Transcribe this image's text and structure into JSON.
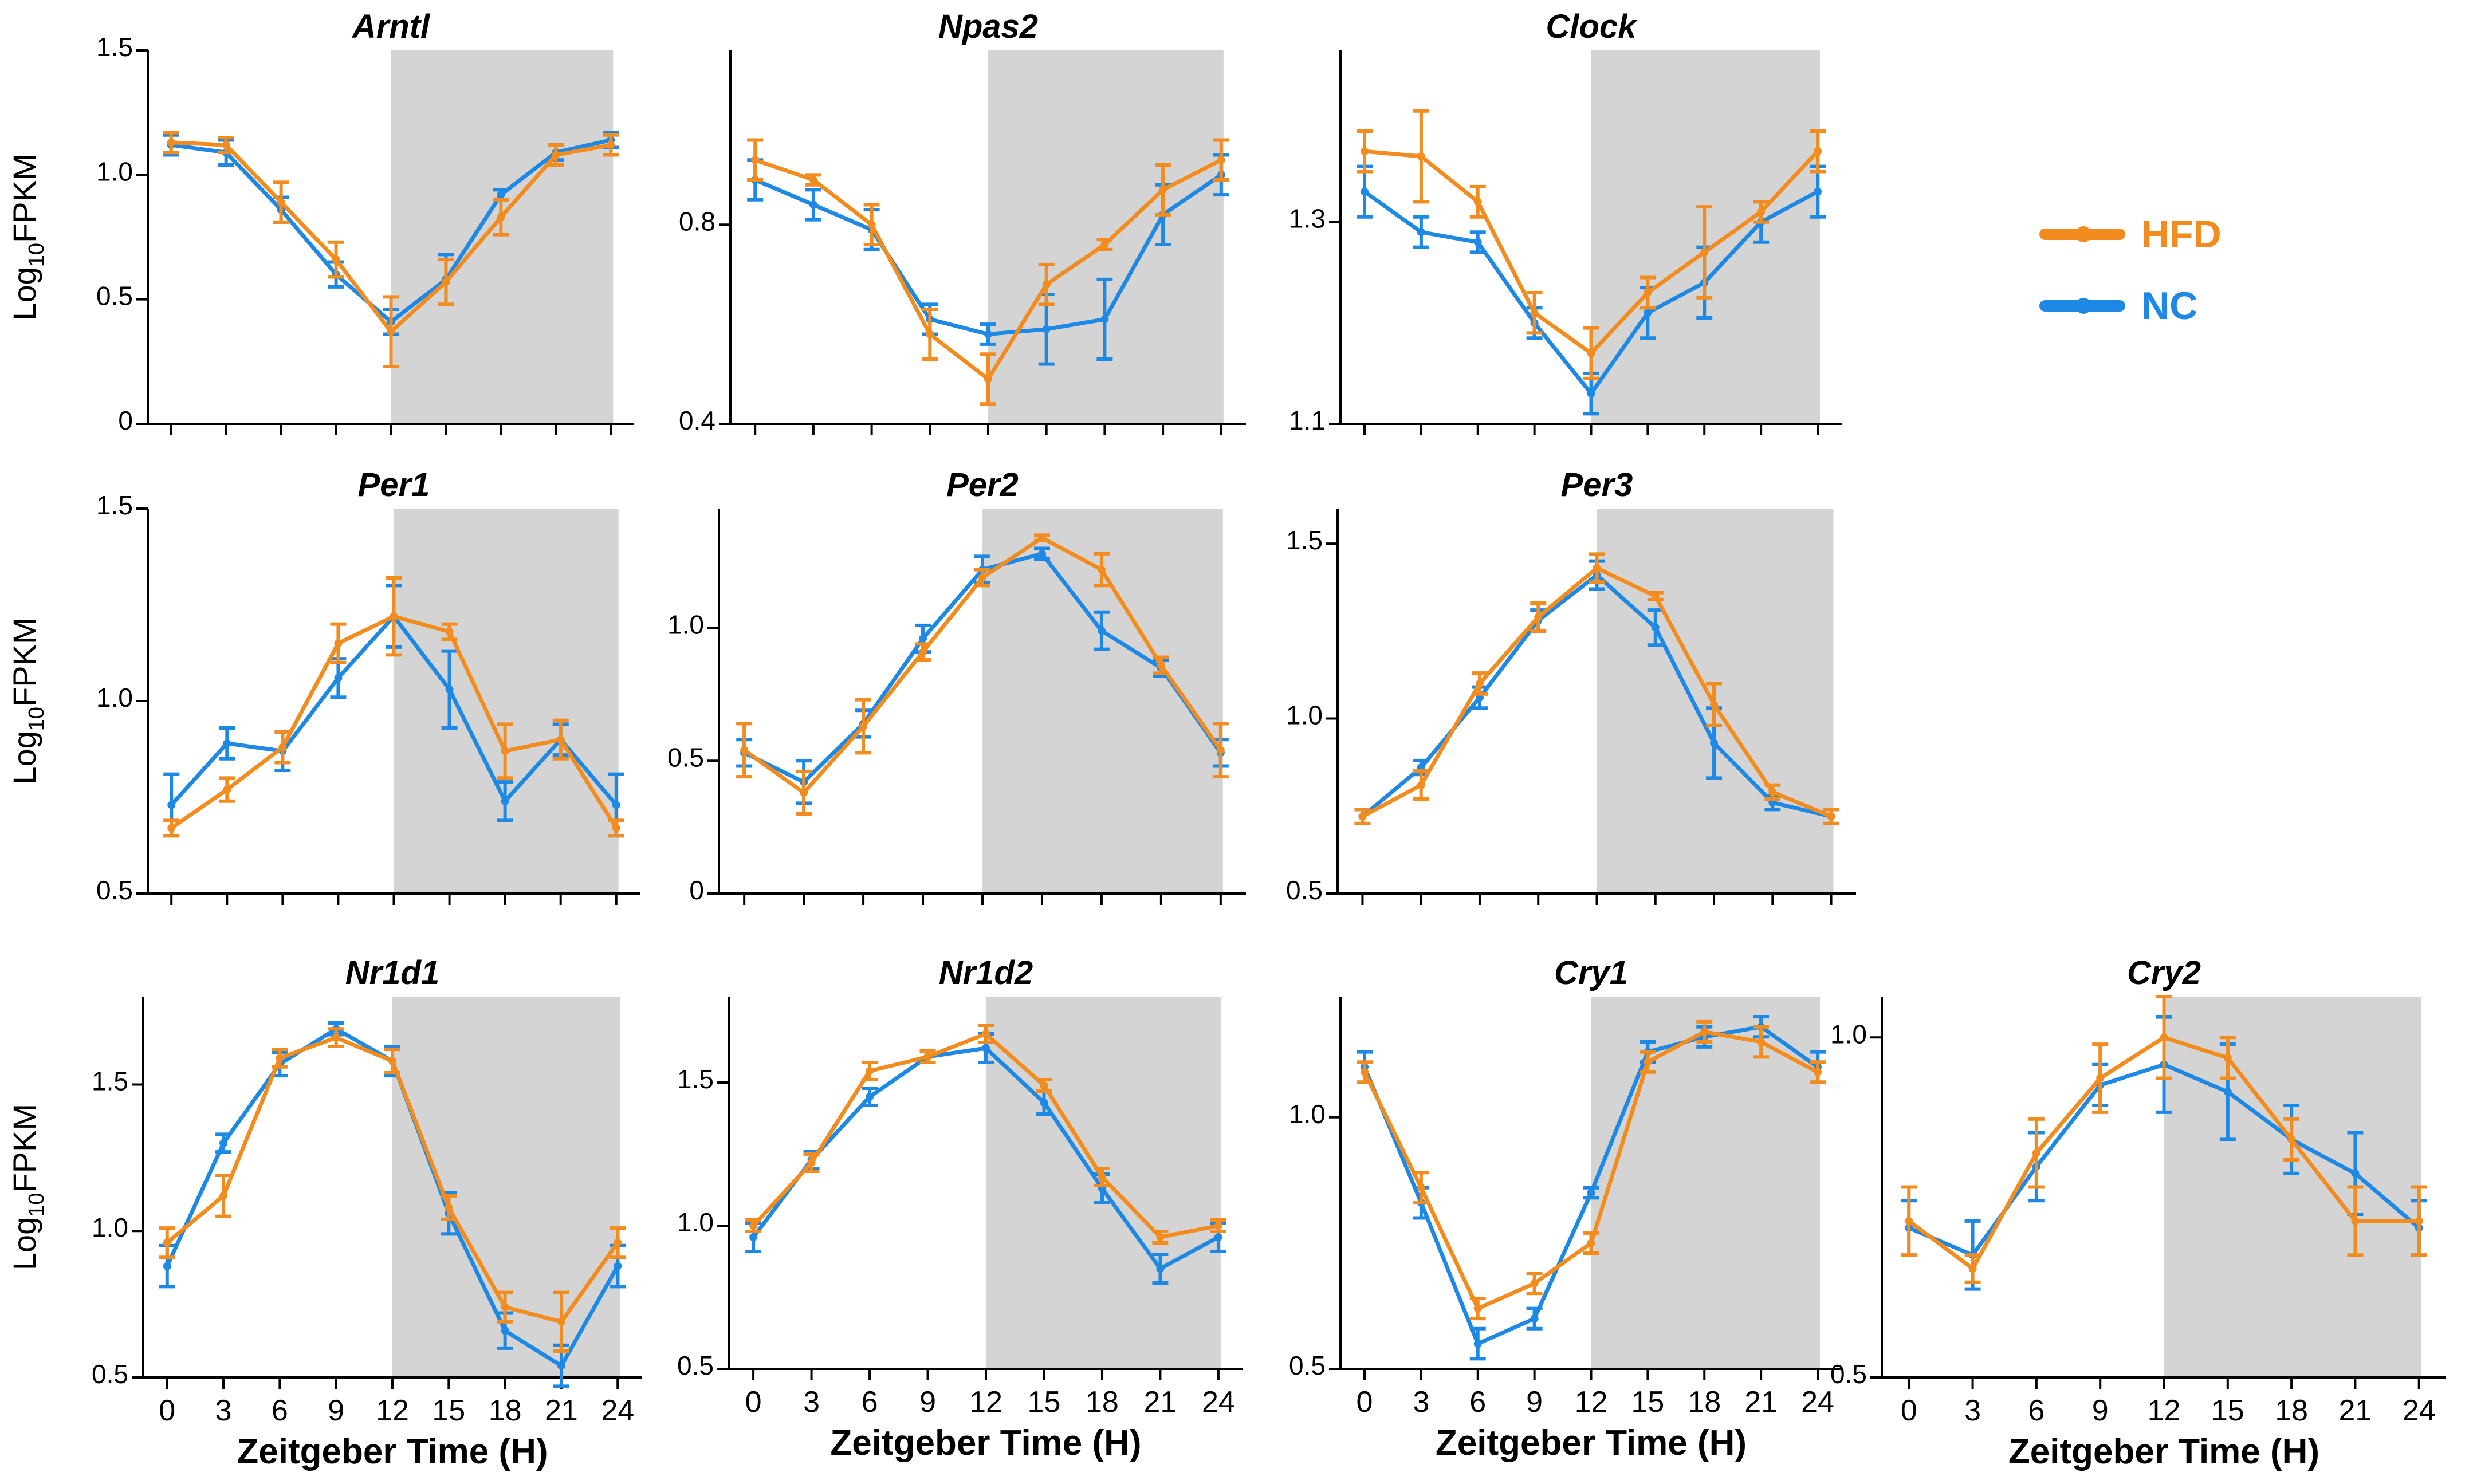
{
  "figure": {
    "ylabel_main": "Log",
    "ylabel_sub": "10",
    "ylabel_tail": "FPKM",
    "xlabel": "Zeitgeber Time (H)",
    "x_ticks": [
      "0",
      "3",
      "6",
      "9",
      "12",
      "15",
      "18",
      "21",
      "24"
    ],
    "dark_phase": [
      12,
      24
    ]
  },
  "legend": {
    "hfd": {
      "label": "HFD",
      "color": "#F28C1E"
    },
    "nc": {
      "label": "NC",
      "color": "#1E88E5"
    }
  },
  "chart_data": [
    {
      "type": "line",
      "title": "Arntl",
      "xlabel": "",
      "ylabel": "Log10FPKM",
      "x": [
        0,
        3,
        6,
        9,
        12,
        15,
        18,
        21,
        24
      ],
      "ylim": [
        0,
        1.5
      ],
      "yticks": [
        0,
        0.5,
        1.0,
        1.5
      ],
      "ytick_labels": [
        "0",
        "0.5",
        "1.0",
        "1.5"
      ],
      "series": [
        {
          "name": "HFD",
          "values": [
            1.13,
            1.12,
            0.89,
            0.66,
            0.37,
            0.57,
            0.83,
            1.08,
            1.12
          ],
          "errors": [
            0.04,
            0.03,
            0.08,
            0.07,
            0.14,
            0.09,
            0.07,
            0.04,
            0.04
          ]
        },
        {
          "name": "NC",
          "values": [
            1.12,
            1.09,
            0.86,
            0.6,
            0.41,
            0.58,
            0.92,
            1.09,
            1.14
          ],
          "errors": [
            0.04,
            0.05,
            0.05,
            0.05,
            0.05,
            0.1,
            0.02,
            0.03,
            0.03
          ]
        }
      ]
    },
    {
      "type": "line",
      "title": "Npas2",
      "xlabel": "",
      "ylabel": "",
      "x": [
        0,
        3,
        6,
        9,
        12,
        15,
        18,
        21,
        24
      ],
      "ylim": [
        0.4,
        1.15
      ],
      "yticks": [
        0.4,
        0.8
      ],
      "ytick_labels": [
        "0.4",
        "0.8"
      ],
      "series": [
        {
          "name": "HFD",
          "values": [
            0.93,
            0.89,
            0.8,
            0.58,
            0.49,
            0.68,
            0.76,
            0.87,
            0.93
          ],
          "errors": [
            0.04,
            0.01,
            0.04,
            0.05,
            0.05,
            0.04,
            0.01,
            0.05,
            0.04
          ]
        },
        {
          "name": "NC",
          "values": [
            0.89,
            0.84,
            0.79,
            0.61,
            0.58,
            0.59,
            0.61,
            0.82,
            0.9
          ],
          "errors": [
            0.04,
            0.03,
            0.04,
            0.03,
            0.02,
            0.07,
            0.08,
            0.06,
            0.04
          ]
        }
      ]
    },
    {
      "type": "line",
      "title": "Clock",
      "xlabel": "",
      "ylabel": "",
      "x": [
        0,
        3,
        6,
        9,
        12,
        15,
        18,
        21,
        24
      ],
      "ylim": [
        1.1,
        1.47
      ],
      "yticks": [
        1.1,
        1.3
      ],
      "ytick_labels": [
        "1.1",
        "1.3"
      ],
      "series": [
        {
          "name": "HFD",
          "values": [
            1.37,
            1.365,
            1.32,
            1.21,
            1.17,
            1.23,
            1.27,
            1.31,
            1.37
          ],
          "errors": [
            0.02,
            0.045,
            0.015,
            0.02,
            0.025,
            0.015,
            0.045,
            0.01,
            0.02
          ]
        },
        {
          "name": "NC",
          "values": [
            1.33,
            1.29,
            1.28,
            1.2,
            1.13,
            1.21,
            1.24,
            1.3,
            1.33
          ],
          "errors": [
            0.025,
            0.015,
            0.01,
            0.015,
            0.02,
            0.025,
            0.035,
            0.02,
            0.025
          ]
        }
      ]
    },
    {
      "type": "line",
      "title": "Per1",
      "xlabel": "",
      "ylabel": "Log10FPKM",
      "x": [
        0,
        3,
        6,
        9,
        12,
        15,
        18,
        21,
        24
      ],
      "ylim": [
        0.5,
        1.5
      ],
      "yticks": [
        0.5,
        1.0,
        1.5
      ],
      "ytick_labels": [
        "0.5",
        "1.0",
        "1.5"
      ],
      "series": [
        {
          "name": "HFD",
          "values": [
            0.67,
            0.77,
            0.88,
            1.15,
            1.22,
            1.18,
            0.87,
            0.9,
            0.67
          ],
          "errors": [
            0.02,
            0.03,
            0.04,
            0.05,
            0.1,
            0.02,
            0.07,
            0.05,
            0.02
          ]
        },
        {
          "name": "NC",
          "values": [
            0.73,
            0.89,
            0.87,
            1.06,
            1.22,
            1.03,
            0.74,
            0.9,
            0.73
          ],
          "errors": [
            0.08,
            0.04,
            0.05,
            0.05,
            0.08,
            0.1,
            0.05,
            0.04,
            0.08
          ]
        }
      ]
    },
    {
      "type": "line",
      "title": "Per2",
      "xlabel": "",
      "ylabel": "",
      "x": [
        0,
        3,
        6,
        9,
        12,
        15,
        18,
        21,
        24
      ],
      "ylim": [
        0,
        1.45
      ],
      "yticks": [
        0,
        0.5,
        1.0
      ],
      "ytick_labels": [
        "0",
        "0.5",
        "1.0"
      ],
      "series": [
        {
          "name": "HFD",
          "values": [
            0.54,
            0.38,
            0.63,
            0.91,
            1.19,
            1.34,
            1.22,
            0.86,
            0.54
          ],
          "errors": [
            0.1,
            0.08,
            0.1,
            0.03,
            0.03,
            0.01,
            0.06,
            0.03,
            0.1
          ]
        },
        {
          "name": "NC",
          "values": [
            0.53,
            0.42,
            0.64,
            0.96,
            1.22,
            1.28,
            0.99,
            0.85,
            0.53
          ],
          "errors": [
            0.05,
            0.08,
            0.05,
            0.05,
            0.05,
            0.02,
            0.07,
            0.03,
            0.05
          ]
        }
      ]
    },
    {
      "type": "line",
      "title": "Per3",
      "xlabel": "",
      "ylabel": "",
      "x": [
        0,
        3,
        6,
        9,
        12,
        15,
        18,
        21,
        24
      ],
      "ylim": [
        0.5,
        1.6
      ],
      "yticks": [
        0.5,
        1.0,
        1.5
      ],
      "ytick_labels": [
        "0.5",
        "1.0",
        "1.5"
      ],
      "series": [
        {
          "name": "HFD",
          "values": [
            0.72,
            0.81,
            1.1,
            1.29,
            1.43,
            1.35,
            1.04,
            0.79,
            0.72
          ],
          "errors": [
            0.02,
            0.04,
            0.03,
            0.04,
            0.04,
            0.01,
            0.06,
            0.02,
            0.02
          ]
        },
        {
          "name": "NC",
          "values": [
            0.72,
            0.86,
            1.06,
            1.28,
            1.41,
            1.26,
            0.93,
            0.76,
            0.72
          ],
          "errors": [
            0.02,
            0.02,
            0.03,
            0.03,
            0.04,
            0.05,
            0.1,
            0.02,
            0.02
          ]
        }
      ]
    },
    {
      "type": "line",
      "title": "Nr1d1",
      "xlabel": "Zeitgeber Time (H)",
      "ylabel": "Log10FPKM",
      "x": [
        0,
        3,
        6,
        9,
        12,
        15,
        18,
        21,
        24
      ],
      "ylim": [
        0.5,
        1.8
      ],
      "yticks": [
        0.5,
        1.0,
        1.5
      ],
      "ytick_labels": [
        "0.5",
        "1.0",
        "1.5"
      ],
      "series": [
        {
          "name": "HFD",
          "values": [
            0.96,
            1.12,
            1.59,
            1.66,
            1.58,
            1.08,
            0.74,
            0.69,
            0.96
          ],
          "errors": [
            0.05,
            0.07,
            0.03,
            0.03,
            0.04,
            0.04,
            0.05,
            0.1,
            0.05
          ]
        },
        {
          "name": "NC",
          "values": [
            0.88,
            1.3,
            1.57,
            1.69,
            1.58,
            1.06,
            0.66,
            0.54,
            0.88
          ],
          "errors": [
            0.07,
            0.03,
            0.04,
            0.02,
            0.05,
            0.07,
            0.06,
            0.07,
            0.07
          ]
        }
      ]
    },
    {
      "type": "line",
      "title": "Nr1d2",
      "xlabel": "Zeitgeber Time (H)",
      "ylabel": "",
      "x": [
        0,
        3,
        6,
        9,
        12,
        15,
        18,
        21,
        24
      ],
      "ylim": [
        0.5,
        1.8
      ],
      "yticks": [
        0.5,
        1.0,
        1.5
      ],
      "ytick_labels": [
        "0.5",
        "1.0",
        "1.5"
      ],
      "series": [
        {
          "name": "HFD",
          "values": [
            1.0,
            1.22,
            1.54,
            1.59,
            1.67,
            1.49,
            1.17,
            0.96,
            1.0
          ],
          "errors": [
            0.02,
            0.03,
            0.03,
            0.02,
            0.03,
            0.02,
            0.03,
            0.02,
            0.02
          ]
        },
        {
          "name": "NC",
          "values": [
            0.96,
            1.23,
            1.45,
            1.59,
            1.62,
            1.43,
            1.13,
            0.85,
            0.96
          ],
          "errors": [
            0.05,
            0.03,
            0.03,
            0.02,
            0.05,
            0.04,
            0.05,
            0.05,
            0.05
          ]
        }
      ]
    },
    {
      "type": "line",
      "title": "Cry1",
      "xlabel": "Zeitgeber Time (H)",
      "ylabel": "",
      "x": [
        0,
        3,
        6,
        9,
        12,
        15,
        18,
        21,
        24
      ],
      "ylim": [
        0.5,
        1.24
      ],
      "yticks": [
        0.5,
        1.0
      ],
      "ytick_labels": [
        "0.5",
        "1.0"
      ],
      "series": [
        {
          "name": "HFD",
          "values": [
            1.09,
            0.86,
            0.62,
            0.67,
            0.75,
            1.11,
            1.17,
            1.15,
            1.09
          ],
          "errors": [
            0.02,
            0.03,
            0.02,
            0.02,
            0.02,
            0.02,
            0.02,
            0.03,
            0.02
          ]
        },
        {
          "name": "NC",
          "values": [
            1.1,
            0.83,
            0.55,
            0.6,
            0.85,
            1.13,
            1.16,
            1.18,
            1.1
          ],
          "errors": [
            0.03,
            0.03,
            0.03,
            0.02,
            0.01,
            0.02,
            0.02,
            0.02,
            0.03
          ]
        }
      ]
    },
    {
      "type": "line",
      "title": "Cry2",
      "xlabel": "Zeitgeber Time (H)",
      "ylabel": "",
      "x": [
        0,
        3,
        6,
        9,
        12,
        15,
        18,
        21,
        24
      ],
      "ylim": [
        0.5,
        1.06
      ],
      "yticks": [
        0.5,
        1.0
      ],
      "ytick_labels": [
        "0.5",
        "1.0"
      ],
      "series": [
        {
          "name": "HFD",
          "values": [
            0.73,
            0.66,
            0.83,
            0.94,
            1.0,
            0.97,
            0.85,
            0.73,
            0.73
          ],
          "errors": [
            0.05,
            0.02,
            0.05,
            0.05,
            0.06,
            0.03,
            0.03,
            0.05,
            0.05
          ]
        },
        {
          "name": "NC",
          "values": [
            0.72,
            0.68,
            0.81,
            0.93,
            0.96,
            0.92,
            0.85,
            0.8,
            0.72
          ],
          "errors": [
            0.04,
            0.05,
            0.05,
            0.03,
            0.07,
            0.07,
            0.05,
            0.06,
            0.04
          ]
        }
      ]
    }
  ]
}
